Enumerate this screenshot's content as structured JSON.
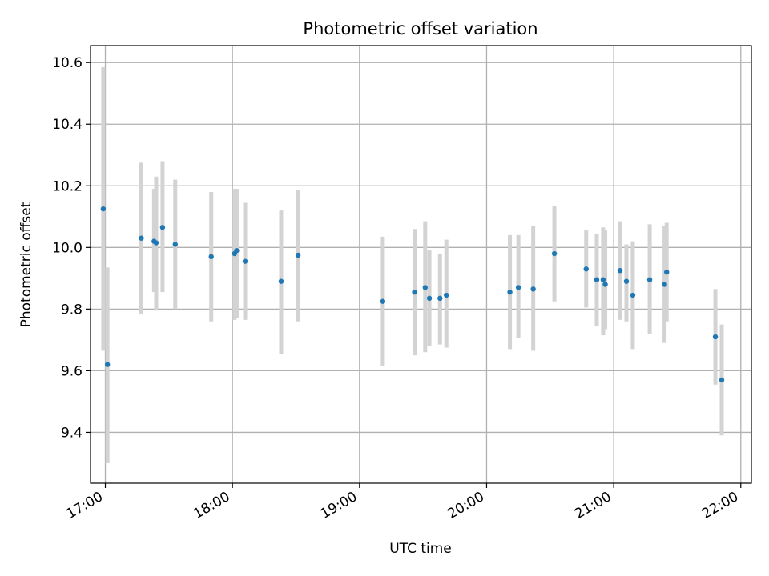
{
  "chart_data": {
    "type": "scatter",
    "title": "Photometric offset variation",
    "xlabel": "UTC time",
    "ylabel": "Photometric offset",
    "grid": true,
    "x_unit": "UTC time (HH:MM)",
    "xlim": [
      "16:53",
      "22:05"
    ],
    "ylim": [
      9.235,
      10.655
    ],
    "x_ticks": [
      "17:00",
      "18:00",
      "19:00",
      "20:00",
      "21:00",
      "22:00"
    ],
    "y_ticks": [
      9.4,
      9.6,
      9.8,
      10.0,
      10.2,
      10.4,
      10.6
    ],
    "y_tick_labels": [
      "9.4",
      "9.6",
      "9.8",
      "10.0",
      "10.2",
      "10.4",
      "10.6"
    ],
    "colors": {
      "marker": "#1f77b4",
      "errorbar": "#d3d3d3",
      "grid": "#b0b0b0"
    },
    "series": [
      {
        "marker": "dot",
        "points": [
          {
            "x": "16:59",
            "y": 10.125,
            "y_low": 9.665,
            "y_high": 10.585
          },
          {
            "x": "17:01",
            "y": 9.62,
            "y_low": 9.3,
            "y_high": 9.935
          },
          {
            "x": "17:17",
            "y": 10.03,
            "y_low": 9.785,
            "y_high": 10.275
          },
          {
            "x": "17:23",
            "y": 10.02,
            "y_low": 9.855,
            "y_high": 10.19
          },
          {
            "x": "17:24",
            "y": 10.015,
            "y_low": 9.795,
            "y_high": 10.23
          },
          {
            "x": "17:27",
            "y": 10.065,
            "y_low": 9.855,
            "y_high": 10.28
          },
          {
            "x": "17:33",
            "y": 10.01,
            "y_low": 9.8,
            "y_high": 10.22
          },
          {
            "x": "17:50",
            "y": 9.97,
            "y_low": 9.76,
            "y_high": 10.18
          },
          {
            "x": "18:01",
            "y": 9.98,
            "y_low": 9.765,
            "y_high": 10.19
          },
          {
            "x": "18:02",
            "y": 9.99,
            "y_low": 9.77,
            "y_high": 10.19
          },
          {
            "x": "18:06",
            "y": 9.955,
            "y_low": 9.765,
            "y_high": 10.145
          },
          {
            "x": "18:23",
            "y": 9.89,
            "y_low": 9.655,
            "y_high": 10.12
          },
          {
            "x": "18:31",
            "y": 9.975,
            "y_low": 9.76,
            "y_high": 10.185
          },
          {
            "x": "19:11",
            "y": 9.825,
            "y_low": 9.615,
            "y_high": 10.035
          },
          {
            "x": "19:26",
            "y": 9.855,
            "y_low": 9.65,
            "y_high": 10.06
          },
          {
            "x": "19:31",
            "y": 9.87,
            "y_low": 9.66,
            "y_high": 10.085
          },
          {
            "x": "19:33",
            "y": 9.835,
            "y_low": 9.68,
            "y_high": 9.99
          },
          {
            "x": "19:38",
            "y": 9.835,
            "y_low": 9.685,
            "y_high": 9.98
          },
          {
            "x": "19:41",
            "y": 9.845,
            "y_low": 9.675,
            "y_high": 10.025
          },
          {
            "x": "20:11",
            "y": 9.855,
            "y_low": 9.67,
            "y_high": 10.04
          },
          {
            "x": "20:15",
            "y": 9.87,
            "y_low": 9.705,
            "y_high": 10.04
          },
          {
            "x": "20:22",
            "y": 9.865,
            "y_low": 9.665,
            "y_high": 10.07
          },
          {
            "x": "20:32",
            "y": 9.98,
            "y_low": 9.825,
            "y_high": 10.135
          },
          {
            "x": "20:47",
            "y": 9.93,
            "y_low": 9.805,
            "y_high": 10.055
          },
          {
            "x": "20:52",
            "y": 9.895,
            "y_low": 9.745,
            "y_high": 10.045
          },
          {
            "x": "20:55",
            "y": 9.895,
            "y_low": 9.715,
            "y_high": 10.065
          },
          {
            "x": "20:56",
            "y": 9.88,
            "y_low": 9.735,
            "y_high": 10.055
          },
          {
            "x": "21:03",
            "y": 9.925,
            "y_low": 9.765,
            "y_high": 10.085
          },
          {
            "x": "21:06",
            "y": 9.89,
            "y_low": 9.76,
            "y_high": 10.01
          },
          {
            "x": "21:09",
            "y": 9.845,
            "y_low": 9.67,
            "y_high": 10.02
          },
          {
            "x": "21:17",
            "y": 9.895,
            "y_low": 9.72,
            "y_high": 10.075
          },
          {
            "x": "21:24",
            "y": 9.88,
            "y_low": 9.69,
            "y_high": 10.07
          },
          {
            "x": "21:25",
            "y": 9.92,
            "y_low": 9.76,
            "y_high": 10.08
          },
          {
            "x": "21:48",
            "y": 9.71,
            "y_low": 9.555,
            "y_high": 9.865
          },
          {
            "x": "21:51",
            "y": 9.57,
            "y_low": 9.39,
            "y_high": 9.75
          }
        ]
      }
    ]
  }
}
